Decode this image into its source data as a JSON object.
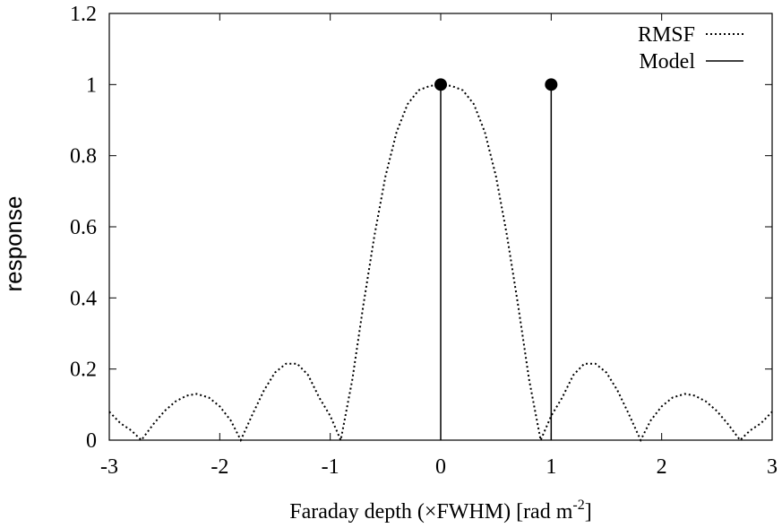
{
  "chart_data": {
    "type": "line",
    "xlabel": "Faraday depth (×FWHM) [rad m",
    "xlabel_sup": "-2",
    "xlabel_end": "]",
    "ylabel": "response",
    "xlim": [
      -3,
      3
    ],
    "ylim": [
      0,
      1.2
    ],
    "x_ticks": [
      -3,
      -2,
      -1,
      0,
      1,
      2,
      3
    ],
    "x_tick_labels": [
      "-3",
      "-2",
      "-1",
      "0",
      "1",
      "2",
      "3"
    ],
    "y_ticks": [
      0,
      0.2,
      0.4,
      0.6,
      0.8,
      1,
      1.2
    ],
    "y_tick_labels": [
      "0",
      "0.2",
      "0.4",
      "0.6",
      "0.8",
      "1",
      "1.2"
    ],
    "grid": false,
    "legend_position": "top-right",
    "series": [
      {
        "name": "RMSF",
        "style": "dotted",
        "color": "#000000",
        "x": [
          -3.0,
          -2.9,
          -2.8,
          -2.71,
          -2.6,
          -2.5,
          -2.4,
          -2.3,
          -2.21,
          -2.1,
          -2.0,
          -1.9,
          -1.81,
          -1.7,
          -1.6,
          -1.5,
          -1.4,
          -1.3,
          -1.2,
          -1.1,
          -1.0,
          -0.905,
          -0.8,
          -0.7,
          -0.6,
          -0.5,
          -0.4,
          -0.3,
          -0.2,
          -0.1,
          0.0,
          0.1,
          0.2,
          0.3,
          0.4,
          0.5,
          0.6,
          0.7,
          0.8,
          0.905,
          1.0,
          1.1,
          1.2,
          1.3,
          1.4,
          1.5,
          1.6,
          1.7,
          1.81,
          1.9,
          2.0,
          2.1,
          2.21,
          2.3,
          2.4,
          2.5,
          2.6,
          2.71,
          2.8,
          2.9,
          3.0
        ],
        "y": [
          0.08,
          0.048,
          0.027,
          0.0,
          0.045,
          0.082,
          0.109,
          0.125,
          0.13,
          0.12,
          0.095,
          0.055,
          0.0,
          0.075,
          0.14,
          0.19,
          0.215,
          0.215,
          0.183,
          0.12,
          0.068,
          0.0,
          0.17,
          0.381,
          0.575,
          0.742,
          0.866,
          0.945,
          0.984,
          0.996,
          1.0,
          0.996,
          0.984,
          0.945,
          0.866,
          0.742,
          0.575,
          0.381,
          0.17,
          0.0,
          0.068,
          0.12,
          0.183,
          0.215,
          0.215,
          0.19,
          0.14,
          0.075,
          0.0,
          0.055,
          0.095,
          0.12,
          0.13,
          0.125,
          0.109,
          0.082,
          0.045,
          0.0,
          0.027,
          0.048,
          0.08
        ]
      },
      {
        "name": "Model",
        "style": "solid",
        "type": "stem",
        "color": "#000000",
        "x": [
          0,
          1
        ],
        "y": [
          1,
          1
        ]
      }
    ]
  }
}
